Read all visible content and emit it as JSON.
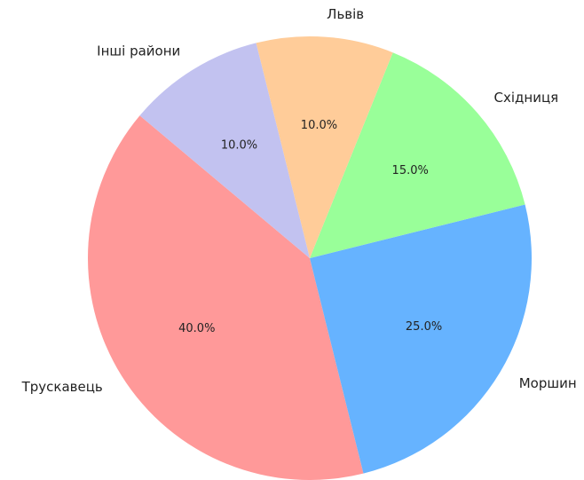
{
  "chart_data": {
    "type": "pie",
    "categories": [
      "Трускавець",
      "Моршин",
      "Східниця",
      "Львів",
      "Інші райони"
    ],
    "values": [
      40,
      25,
      15,
      10,
      10
    ],
    "value_labels": [
      "40.0%",
      "25.0%",
      "15.0%",
      "10.0%",
      "10.0%"
    ],
    "colors": [
      "#ff9999",
      "#66b3ff",
      "#99ff99",
      "#ffcc99",
      "#c2c2f0"
    ],
    "startangle": 140
  }
}
